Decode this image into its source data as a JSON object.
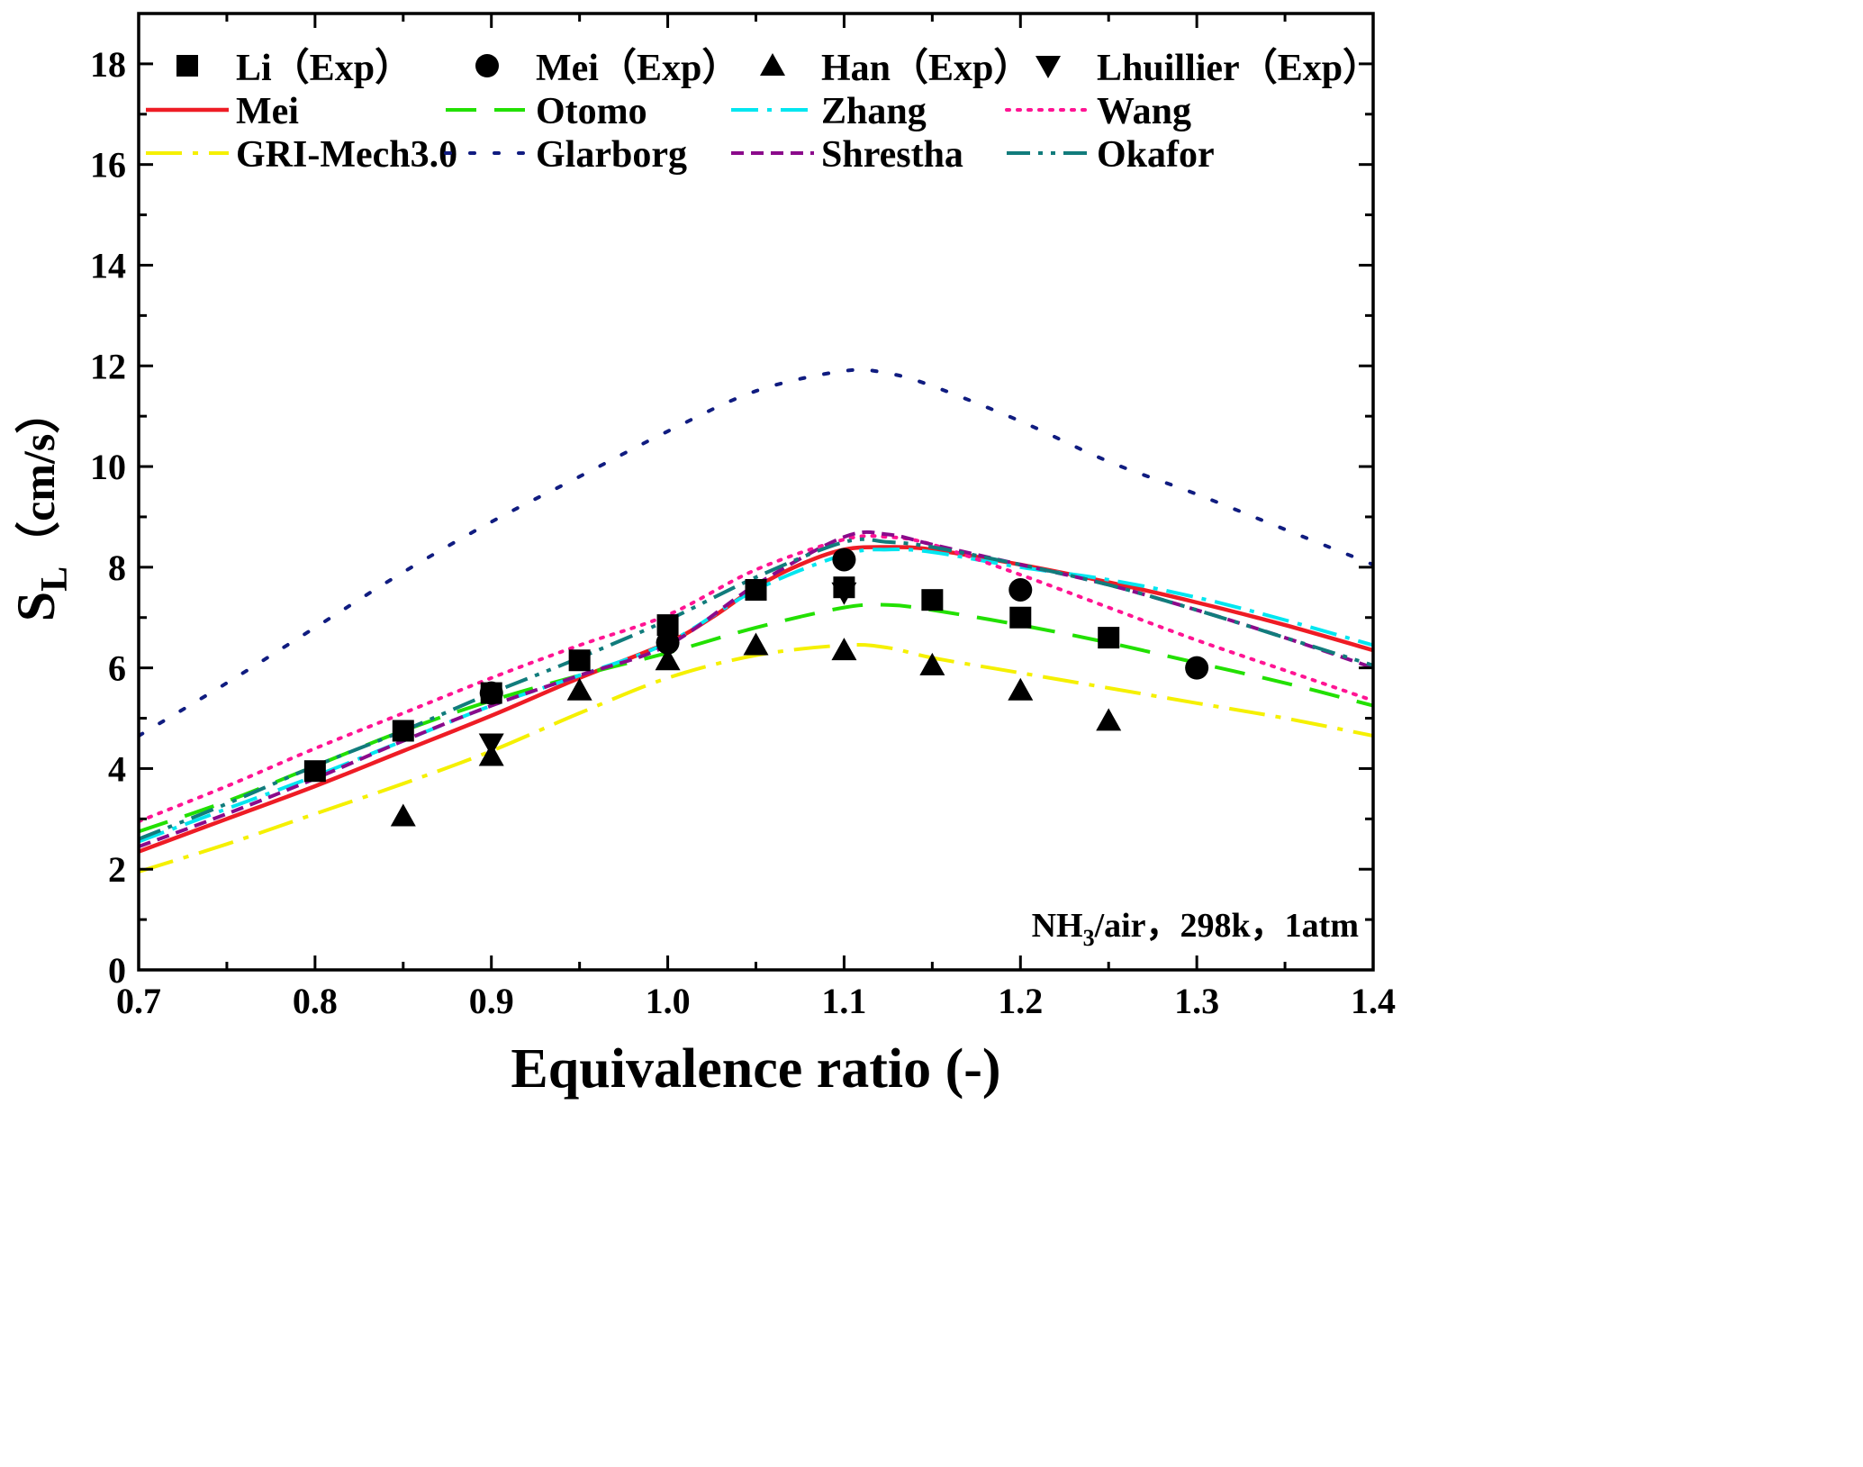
{
  "chart_data": {
    "type": "line",
    "xlabel": "Equivalence ratio (-)",
    "ylabel": {
      "main": "S",
      "sub": "L",
      "unit": "（cm/s）"
    },
    "xlim": [
      0.7,
      1.4
    ],
    "ylim": [
      0,
      19
    ],
    "xticks": [
      0.7,
      0.8,
      0.9,
      1.0,
      1.1,
      1.2,
      1.3,
      1.4
    ],
    "xtick_labels": [
      "0.7",
      "0.8",
      "0.9",
      "1.0",
      "1.1",
      "1.2",
      "1.3",
      "1.4"
    ],
    "yticks": [
      0,
      2,
      4,
      6,
      8,
      10,
      12,
      14,
      16,
      18
    ],
    "ytick_labels": [
      "0",
      "2",
      "4",
      "6",
      "8",
      "10",
      "12",
      "14",
      "16",
      "18"
    ],
    "annotation": {
      "a": "NH",
      "sub": "3",
      "b": "/air，298k，1atm"
    },
    "experimental": [
      {
        "name": "Li（Exp）",
        "marker": "square",
        "x": [
          0.8,
          0.85,
          0.9,
          0.95,
          1.0,
          1.05,
          1.1,
          1.15,
          1.2,
          1.25
        ],
        "y": [
          3.95,
          4.75,
          5.5,
          6.15,
          6.85,
          7.55,
          7.6,
          7.35,
          7.0,
          6.6
        ]
      },
      {
        "name": "Mei（Exp）",
        "marker": "circle",
        "x": [
          0.9,
          1.0,
          1.1,
          1.2,
          1.3
        ],
        "y": [
          5.5,
          6.5,
          8.15,
          7.55,
          6.0
        ]
      },
      {
        "name": "Han（Exp）",
        "marker": "triangle-up",
        "x": [
          0.85,
          0.9,
          0.95,
          1.0,
          1.05,
          1.1,
          1.15,
          1.2,
          1.25
        ],
        "y": [
          3.05,
          4.25,
          5.55,
          6.15,
          6.45,
          6.35,
          6.05,
          5.55,
          4.95
        ]
      },
      {
        "name": "Lhuillier（Exp）",
        "marker": "triangle-down",
        "x": [
          0.9,
          1.1
        ],
        "y": [
          4.5,
          7.5
        ]
      }
    ],
    "series": [
      {
        "name": "Mei",
        "color": "#ee1c25",
        "dash": "solid",
        "x": [
          0.7,
          0.75,
          0.8,
          0.85,
          0.9,
          0.95,
          1.0,
          1.025,
          1.05,
          1.075,
          1.1,
          1.125,
          1.15,
          1.2,
          1.25,
          1.3,
          1.35,
          1.4
        ],
        "y": [
          2.35,
          3.0,
          3.65,
          4.35,
          5.05,
          5.8,
          6.5,
          7.0,
          7.6,
          8.05,
          8.35,
          8.4,
          8.35,
          8.05,
          7.7,
          7.3,
          6.85,
          6.35
        ]
      },
      {
        "name": "Otomo",
        "color": "#22e000",
        "dash": "long-dash",
        "x": [
          0.7,
          0.75,
          0.8,
          0.85,
          0.9,
          0.95,
          1.0,
          1.05,
          1.1,
          1.125,
          1.15,
          1.2,
          1.25,
          1.3,
          1.35,
          1.4
        ],
        "y": [
          2.75,
          3.35,
          4.05,
          4.75,
          5.35,
          5.85,
          6.3,
          6.8,
          7.2,
          7.25,
          7.15,
          6.85,
          6.5,
          6.1,
          5.7,
          5.25
        ]
      },
      {
        "name": "Zhang",
        "color": "#00e6f0",
        "dash": "dash-dot",
        "x": [
          0.7,
          0.75,
          0.8,
          0.85,
          0.9,
          0.95,
          1.0,
          1.05,
          1.1,
          1.125,
          1.15,
          1.2,
          1.25,
          1.3,
          1.35,
          1.4
        ],
        "y": [
          2.55,
          3.2,
          3.85,
          4.55,
          5.25,
          5.85,
          6.5,
          7.55,
          8.25,
          8.35,
          8.3,
          8.0,
          7.75,
          7.4,
          6.95,
          6.45
        ]
      },
      {
        "name": "Wang",
        "color": "#ff1493",
        "dash": "dotted",
        "x": [
          0.7,
          0.75,
          0.8,
          0.85,
          0.9,
          0.95,
          1.0,
          1.05,
          1.1,
          1.125,
          1.15,
          1.2,
          1.25,
          1.3,
          1.35,
          1.4
        ],
        "y": [
          2.95,
          3.65,
          4.4,
          5.1,
          5.8,
          6.45,
          7.05,
          7.95,
          8.55,
          8.6,
          8.45,
          7.85,
          7.2,
          6.55,
          5.95,
          5.35
        ]
      },
      {
        "name": "GRI-Mech3.0",
        "color": "#f5f000",
        "dash": "long-dash-dot",
        "x": [
          0.7,
          0.75,
          0.8,
          0.85,
          0.9,
          0.95,
          1.0,
          1.05,
          1.1,
          1.125,
          1.15,
          1.2,
          1.25,
          1.3,
          1.35,
          1.4
        ],
        "y": [
          1.95,
          2.5,
          3.1,
          3.7,
          4.35,
          5.1,
          5.8,
          6.25,
          6.45,
          6.4,
          6.2,
          5.9,
          5.6,
          5.3,
          5.0,
          4.65
        ]
      },
      {
        "name": "Glarborg",
        "color": "#101c80",
        "dash": "sparse-dot",
        "x": [
          0.7,
          0.75,
          0.8,
          0.85,
          0.9,
          0.95,
          1.0,
          1.05,
          1.1,
          1.125,
          1.15,
          1.2,
          1.25,
          1.3,
          1.35,
          1.4
        ],
        "y": [
          4.65,
          5.7,
          6.8,
          7.9,
          8.9,
          9.8,
          10.7,
          11.5,
          11.9,
          11.85,
          11.6,
          10.9,
          10.1,
          9.45,
          8.75,
          8.05
        ]
      },
      {
        "name": "Shrestha",
        "color": "#8b0a8b",
        "dash": "short-dash",
        "x": [
          0.7,
          0.75,
          0.8,
          0.85,
          0.9,
          0.95,
          1.0,
          1.05,
          1.1,
          1.125,
          1.15,
          1.2,
          1.25,
          1.3,
          1.35,
          1.4
        ],
        "y": [
          2.45,
          3.1,
          3.8,
          4.55,
          5.25,
          5.85,
          6.45,
          7.65,
          8.6,
          8.65,
          8.45,
          8.05,
          7.65,
          7.15,
          6.6,
          6.0
        ]
      },
      {
        "name": "Okafor",
        "color": "#117c7c",
        "dash": "dash-dot-dot",
        "x": [
          0.7,
          0.75,
          0.8,
          0.85,
          0.9,
          0.95,
          1.0,
          1.05,
          1.1,
          1.125,
          1.15,
          1.2,
          1.25,
          1.3,
          1.35,
          1.4
        ],
        "y": [
          2.6,
          3.3,
          4.05,
          4.75,
          5.5,
          6.2,
          6.95,
          7.8,
          8.5,
          8.5,
          8.4,
          8.05,
          7.65,
          7.15,
          6.6,
          6.05
        ]
      }
    ]
  }
}
